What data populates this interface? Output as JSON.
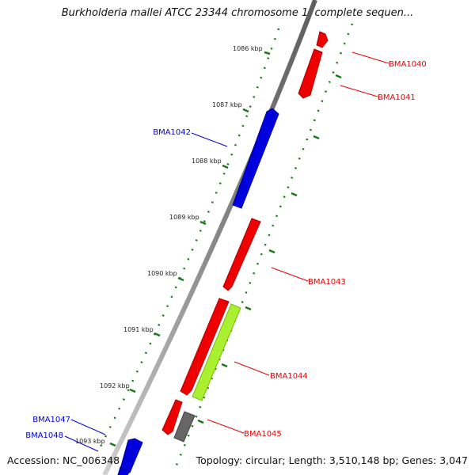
{
  "title": "Burkholderia mallei ATCC 23344 chromosome 1, complete sequen...",
  "accession": "Accession: NC_006348",
  "summary": "Topology: circular; Length: 3,510,148 bp; Genes: 3,047",
  "kbp_labels": [
    "1086 kbp",
    "1087 kbp",
    "1088 kbp",
    "1089 kbp",
    "1090 kbp",
    "1091 kbp",
    "1092 kbp",
    "1093 kbp"
  ],
  "genes": [
    {
      "name": "BMA1040",
      "strand": "+",
      "color": "#ee0000"
    },
    {
      "name": "BMA1041",
      "strand": "+",
      "color": "#ee0000"
    },
    {
      "name": "BMA1042",
      "strand": "-",
      "color": "#0000dd"
    },
    {
      "name": "BMA1043",
      "strand": "+",
      "color": "#ee0000"
    },
    {
      "name": "BMA1044",
      "strand": "+",
      "color": "#ee0000"
    },
    {
      "name": "BMA1045",
      "strand": "+",
      "color": "#ee0000"
    },
    {
      "name": "BMA1047",
      "strand": "-",
      "color": "#0000dd"
    },
    {
      "name": "BMA1048",
      "strand": "-",
      "color": "#0000dd"
    }
  ],
  "colors": {
    "forward": "#ee0000",
    "reverse": "#0000dd",
    "cog": "#aaf030",
    "pseudo": "#666666",
    "ticks": "#1a7a1a",
    "backbone": "#888888"
  }
}
